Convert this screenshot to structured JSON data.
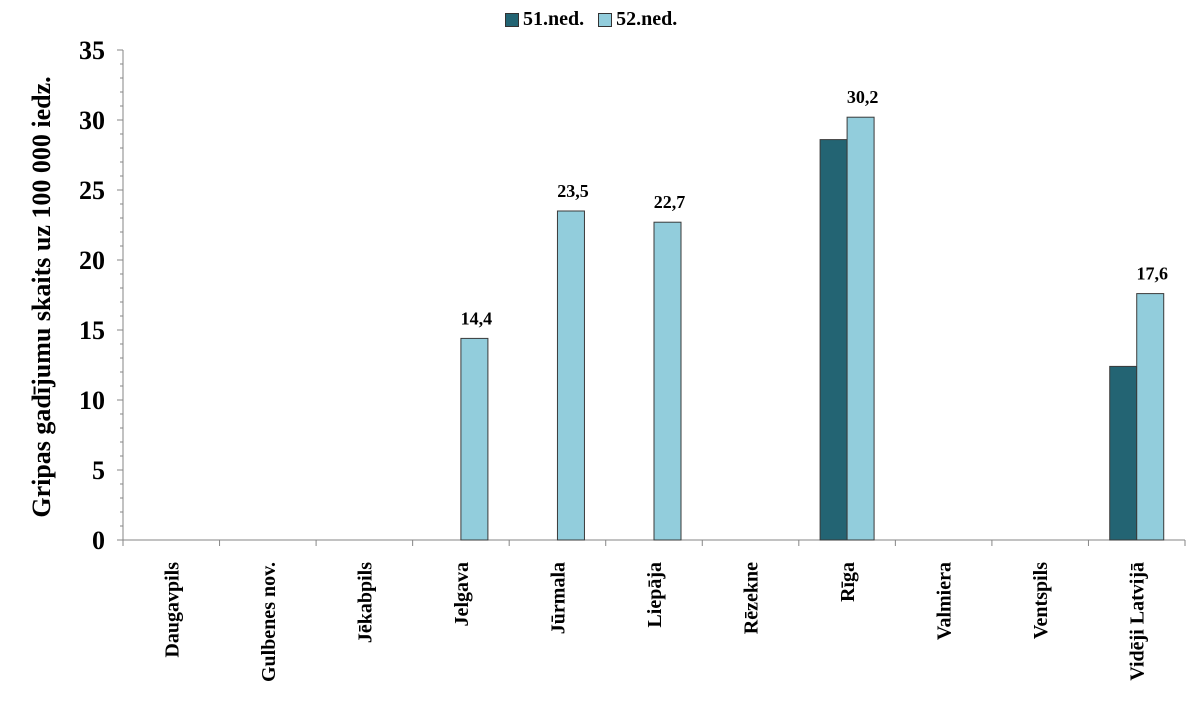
{
  "chart_data": {
    "type": "bar",
    "ylabel": "Gripas gadījumu skaits uz 100 000 iedz.",
    "ylim": [
      0,
      35
    ],
    "ytick_step": 5,
    "yticks": [
      "0",
      "5",
      "10",
      "15",
      "20",
      "25",
      "30",
      "35"
    ],
    "grid": false,
    "legend_position": "top-center",
    "categories": [
      "Daugavpils",
      "Gulbenes nov.",
      "Jēkabpils",
      "Jelgava",
      "Jūrmala",
      "Liepāja",
      "Rēzekne",
      "Rīga",
      "Valmiera",
      "Ventspils",
      "Vidēji Latvijā"
    ],
    "series": [
      {
        "name": "51.ned.",
        "color": "#236473",
        "values": [
          0,
          0,
          0,
          0,
          0,
          0,
          0,
          28.6,
          0,
          0,
          12.4
        ]
      },
      {
        "name": "52.ned.",
        "color": "#92CDDC",
        "values": [
          0,
          0,
          0,
          14.4,
          23.5,
          22.7,
          0,
          30.2,
          0,
          0,
          17.6
        ]
      }
    ],
    "data_labels": [
      {
        "category": "Jelgava",
        "series": "52.ned.",
        "value": 14.4,
        "text": "14,4"
      },
      {
        "category": "Jūrmala",
        "series": "52.ned.",
        "value": 23.5,
        "text": "23,5"
      },
      {
        "category": "Liepāja",
        "series": "52.ned.",
        "value": 22.7,
        "text": "22,7"
      },
      {
        "category": "Rīga",
        "series": "52.ned.",
        "value": 30.2,
        "text": "30,2"
      },
      {
        "category": "Vidēji Latvijā",
        "series": "52.ned.",
        "value": 17.6,
        "text": "17,6"
      }
    ]
  }
}
